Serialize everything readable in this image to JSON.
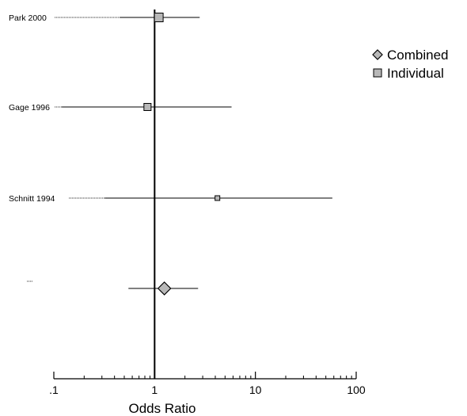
{
  "chart_data": {
    "type": "forest",
    "xlabel": "Odds Ratio",
    "x_scale": "log",
    "xlim": [
      0.1,
      100
    ],
    "reference_line": 1,
    "ticks": [
      {
        "value": 0.1,
        "label": ".1"
      },
      {
        "value": 1,
        "label": "1"
      },
      {
        "value": 10,
        "label": "10"
      },
      {
        "value": 100,
        "label": "100"
      }
    ],
    "studies": [
      {
        "label": "Park 2000",
        "or": 1.1,
        "ci_low": 0.45,
        "ci_high": 2.8,
        "marker": "square",
        "weight": "large"
      },
      {
        "label": "Gage 1996",
        "or": 0.85,
        "ci_low": 0.12,
        "ci_high": 5.8,
        "marker": "square",
        "weight": "medium"
      },
      {
        "label": "Schnitt 1994",
        "or": 4.2,
        "ci_low": 0.32,
        "ci_high": 58,
        "marker": "square",
        "weight": "small"
      }
    ],
    "combined": {
      "label": "",
      "or": 1.25,
      "ci_low": 0.55,
      "ci_high": 2.7,
      "marker": "diamond"
    },
    "legend": {
      "position": "top-right",
      "entries": [
        {
          "label": "Combined",
          "marker": "diamond"
        },
        {
          "label": "Individual",
          "marker": "square"
        }
      ]
    },
    "colors": {
      "marker_fill": "#b8b8b8",
      "line": "#000000"
    }
  }
}
